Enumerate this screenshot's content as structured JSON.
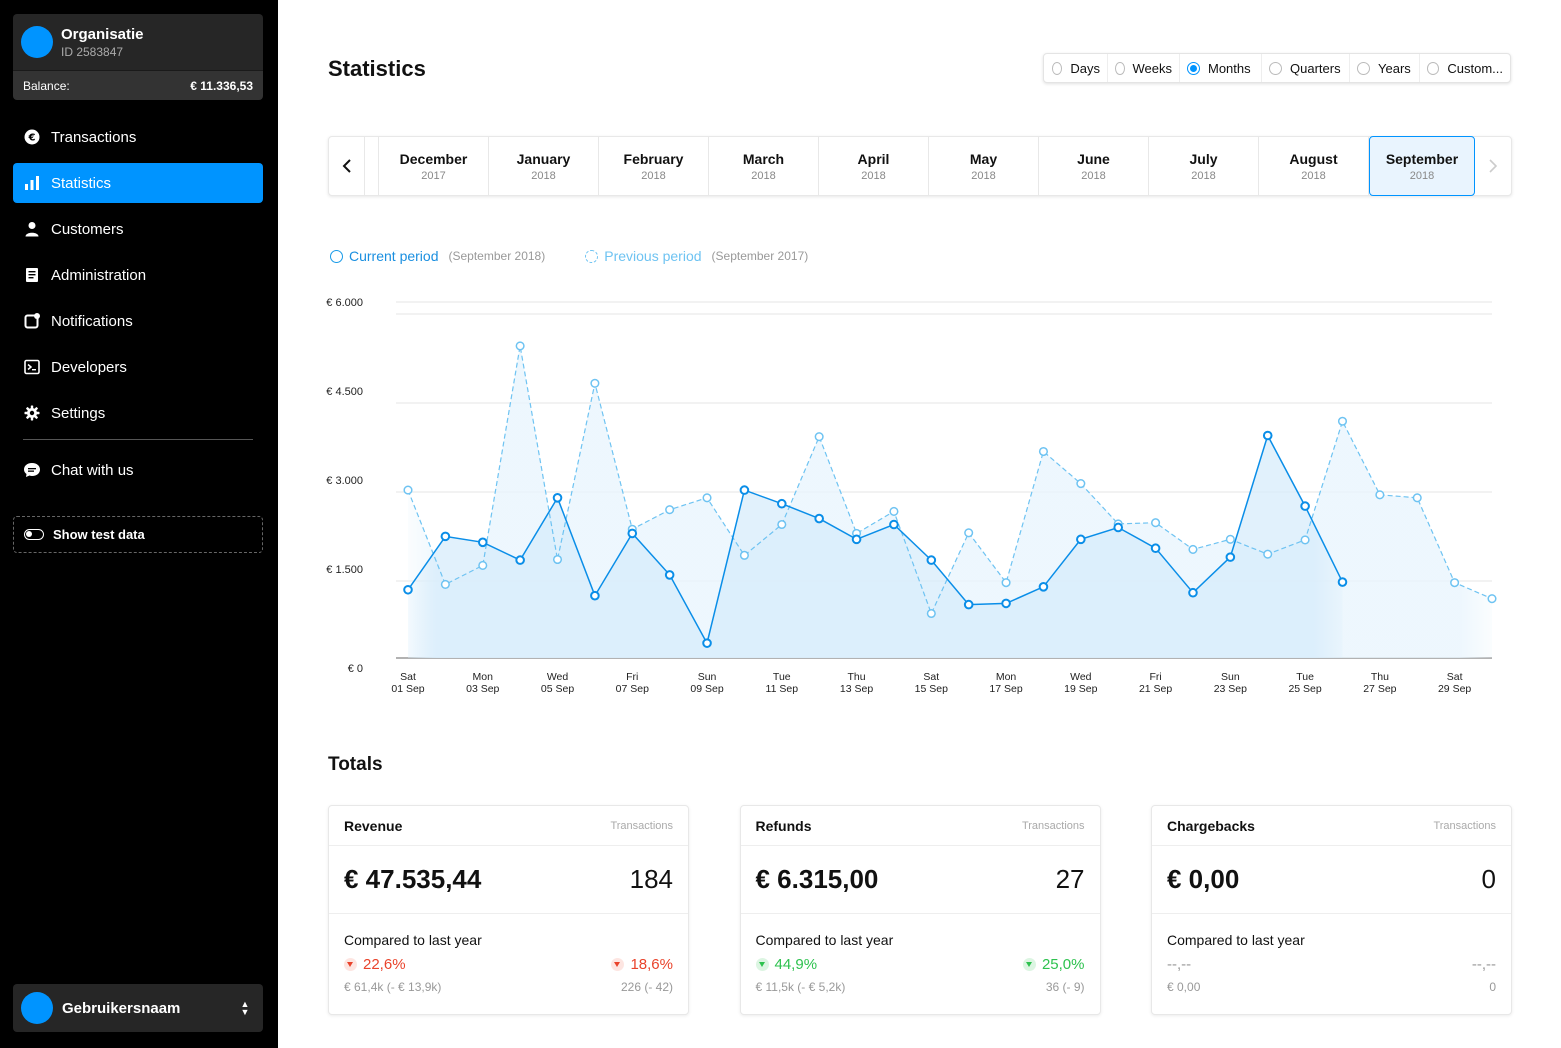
{
  "org": {
    "name": "Organisatie",
    "id": "ID 2583847",
    "balance_label": "Balance:",
    "balance_value": "€ 11.336,53"
  },
  "nav": {
    "items": [
      {
        "label": "Transactions",
        "icon": "euro-icon",
        "active": false
      },
      {
        "label": "Statistics",
        "icon": "bar-chart-icon",
        "active": true
      },
      {
        "label": "Customers",
        "icon": "user-icon",
        "active": false
      },
      {
        "label": "Administration",
        "icon": "document-icon",
        "active": false
      },
      {
        "label": "Notifications",
        "icon": "bell-square-icon",
        "active": false
      },
      {
        "label": "Developers",
        "icon": "terminal-icon",
        "active": false
      },
      {
        "label": "Settings",
        "icon": "gear-icon",
        "active": false
      }
    ],
    "chat": {
      "label": "Chat with us",
      "icon": "chat-icon"
    }
  },
  "test_data": {
    "label": "Show test data"
  },
  "user": {
    "name": "Gebruikersnaam"
  },
  "page": {
    "title": "Statistics"
  },
  "range_options": [
    {
      "label": "Days",
      "selected": false
    },
    {
      "label": "Weeks",
      "selected": false
    },
    {
      "label": "Months",
      "selected": true
    },
    {
      "label": "Quarters",
      "selected": false
    },
    {
      "label": "Years",
      "selected": false
    },
    {
      "label": "Custom...",
      "selected": false
    }
  ],
  "months": [
    {
      "m": "December",
      "y": "2017"
    },
    {
      "m": "January",
      "y": "2018"
    },
    {
      "m": "February",
      "y": "2018"
    },
    {
      "m": "March",
      "y": "2018"
    },
    {
      "m": "April",
      "y": "2018"
    },
    {
      "m": "May",
      "y": "2018"
    },
    {
      "m": "June",
      "y": "2018"
    },
    {
      "m": "July",
      "y": "2018"
    },
    {
      "m": "August",
      "y": "2018"
    },
    {
      "m": "September",
      "y": "2018",
      "selected": true
    }
  ],
  "legend": {
    "current": "Current period",
    "current_sub": "(September 2018)",
    "previous": "Previous period",
    "previous_sub": "(September 2017)"
  },
  "chart_data": {
    "type": "line",
    "ylim": [
      0,
      6000
    ],
    "yticks": [
      0,
      1500,
      3000,
      4500,
      6000
    ],
    "ytick_labels": [
      "€ 0",
      "€ 1.500",
      "€ 3.000",
      "€ 4.500",
      "€ 6.000"
    ],
    "x_labels": [
      [
        "Sat",
        "01 Sep"
      ],
      [
        "Mon",
        "03 Sep"
      ],
      [
        "Wed",
        "05 Sep"
      ],
      [
        "Fri",
        "07 Sep"
      ],
      [
        "Sun",
        "09 Sep"
      ],
      [
        "Tue",
        "11 Sep"
      ],
      [
        "Thu",
        "13 Sep"
      ],
      [
        "Sat",
        "15 Sep"
      ],
      [
        "Mon",
        "17 Sep"
      ],
      [
        "Wed",
        "19 Sep"
      ],
      [
        "Fri",
        "21 Sep"
      ],
      [
        "Sun",
        "23 Sep"
      ],
      [
        "Tue",
        "25 Sep"
      ],
      [
        "Thu",
        "27 Sep"
      ],
      [
        "Sat",
        "29 Sep"
      ]
    ],
    "days": 30,
    "series": [
      {
        "name": "Current period",
        "color": "#0a8ee8",
        "values": [
          1150,
          2050,
          1950,
          1650,
          2700,
          1050,
          2100,
          1400,
          250,
          2830,
          2600,
          2350,
          2000,
          2250,
          1650,
          900,
          920,
          1200,
          2000,
          2200,
          1850,
          1100,
          1700,
          3750,
          2560,
          1280
        ]
      },
      {
        "name": "Previous period",
        "color": "#6ec3f2",
        "values": [
          2830,
          1240,
          1560,
          5260,
          1660,
          4630,
          2170,
          2500,
          2700,
          1730,
          2250,
          3730,
          2100,
          2470,
          750,
          2110,
          1270,
          3480,
          2940,
          2260,
          2280,
          1830,
          2000,
          1750,
          1990,
          3990,
          2750,
          2700,
          1270,
          1000
        ]
      }
    ]
  },
  "totals": {
    "title": "Totals",
    "cards": [
      {
        "title": "Revenue",
        "sub": "Transactions",
        "amount": "€ 47.535,44",
        "count": "184",
        "compare": "Compared to last year",
        "pct_left": "22,6%",
        "pct_right": "18,6%",
        "trend": "red",
        "sub_left": "€ 61,4k (- € 13,9k)",
        "sub_right": "226 (- 42)"
      },
      {
        "title": "Refunds",
        "sub": "Transactions",
        "amount": "€ 6.315,00",
        "count": "27",
        "compare": "Compared to last year",
        "pct_left": "44,9%",
        "pct_right": "25,0%",
        "trend": "green",
        "sub_left": "€ 11,5k (- € 5,2k)",
        "sub_right": "36 (- 9)"
      },
      {
        "title": "Chargebacks",
        "sub": "Transactions",
        "amount": "€ 0,00",
        "count": "0",
        "compare": "Compared to last year",
        "pct_left": "--,--",
        "pct_right": "--,--",
        "trend": "gray",
        "sub_left": "€ 0,00",
        "sub_right": "0"
      }
    ]
  }
}
